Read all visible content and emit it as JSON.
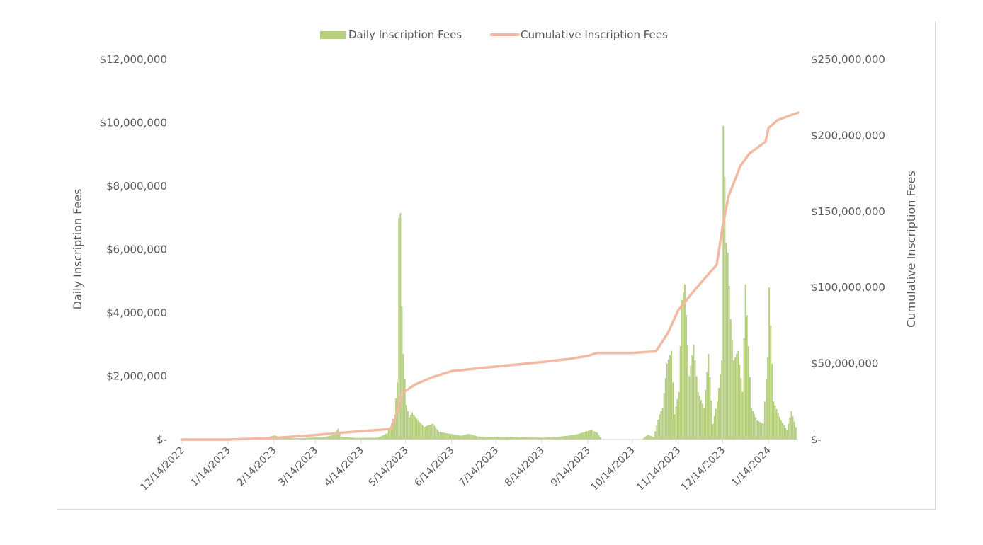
{
  "chart_data": {
    "type": "bar+line",
    "legend": {
      "placement": "top-center",
      "items": [
        {
          "label": "Daily Inscription Fees",
          "kind": "bar",
          "color": "#b5cf7e"
        },
        {
          "label": "Cumulative Inscription Fees",
          "kind": "line",
          "color": "#f4b9a3"
        }
      ]
    },
    "y_left": {
      "label": "Daily Inscription Fees",
      "range": [
        0,
        12000000
      ],
      "ticks": [
        0,
        2000000,
        4000000,
        6000000,
        8000000,
        10000000,
        12000000
      ],
      "tick_labels": [
        "$-",
        "$2,000,000",
        "$4,000,000",
        "$6,000,000",
        "$8,000,000",
        "$10,000,000",
        "$12,000,000"
      ]
    },
    "y_right": {
      "label": "Cumulative Inscription Fees",
      "range": [
        0,
        250000000
      ],
      "ticks": [
        0,
        50000000,
        100000000,
        150000000,
        200000000,
        250000000
      ],
      "tick_labels": [
        "$-",
        "$50,000,000",
        "$100,000,000",
        "$150,000,000",
        "$200,000,000",
        "$250,000,000"
      ]
    },
    "x": {
      "range": [
        "2022-12-14",
        "2024-02-03"
      ],
      "ticks": [
        "2022-12-14",
        "2023-01-14",
        "2023-02-14",
        "2023-03-14",
        "2023-04-14",
        "2023-05-14",
        "2023-06-14",
        "2023-07-14",
        "2023-08-14",
        "2023-09-14",
        "2023-10-14",
        "2023-11-14",
        "2023-12-14",
        "2024-01-14"
      ],
      "tick_labels": [
        "12/14/2022",
        "1/14/2023",
        "2/14/2023",
        "3/14/2023",
        "4/14/2023",
        "5/14/2023",
        "6/14/2023",
        "7/14/2023",
        "8/14/2023",
        "9/14/2023",
        "10/14/2023",
        "11/14/2023",
        "12/14/2023",
        "1/14/2024"
      ]
    },
    "grid": false,
    "series": [
      {
        "name": "Daily Inscription Fees",
        "type": "bar",
        "axis": "left",
        "color": "#b5cf7e",
        "points": [
          [
            "2022-12-14",
            0
          ],
          [
            "2023-01-20",
            0
          ],
          [
            "2023-02-05",
            30000
          ],
          [
            "2023-02-08",
            60000
          ],
          [
            "2023-02-14",
            130000
          ],
          [
            "2023-02-20",
            50000
          ],
          [
            "2023-03-01",
            40000
          ],
          [
            "2023-03-10",
            60000
          ],
          [
            "2023-03-20",
            80000
          ],
          [
            "2023-03-26",
            150000
          ],
          [
            "2023-03-29",
            350000
          ],
          [
            "2023-03-31",
            90000
          ],
          [
            "2023-04-10",
            50000
          ],
          [
            "2023-04-25",
            60000
          ],
          [
            "2023-05-01",
            200000
          ],
          [
            "2023-05-04",
            500000
          ],
          [
            "2023-05-06",
            800000
          ],
          [
            "2023-05-08",
            1800000
          ],
          [
            "2023-05-09",
            7000000
          ],
          [
            "2023-05-10",
            7150000
          ],
          [
            "2023-05-11",
            4200000
          ],
          [
            "2023-05-12",
            2700000
          ],
          [
            "2023-05-14",
            1100000
          ],
          [
            "2023-05-16",
            700000
          ],
          [
            "2023-05-18",
            850000
          ],
          [
            "2023-05-22",
            600000
          ],
          [
            "2023-05-26",
            400000
          ],
          [
            "2023-06-01",
            500000
          ],
          [
            "2023-06-05",
            250000
          ],
          [
            "2023-06-10",
            200000
          ],
          [
            "2023-06-14",
            170000
          ],
          [
            "2023-06-20",
            120000
          ],
          [
            "2023-06-25",
            180000
          ],
          [
            "2023-07-01",
            100000
          ],
          [
            "2023-07-10",
            80000
          ],
          [
            "2023-07-20",
            90000
          ],
          [
            "2023-08-01",
            70000
          ],
          [
            "2023-08-14",
            60000
          ],
          [
            "2023-08-25",
            90000
          ],
          [
            "2023-09-05",
            150000
          ],
          [
            "2023-09-12",
            250000
          ],
          [
            "2023-09-16",
            300000
          ],
          [
            "2023-09-20",
            220000
          ],
          [
            "2023-09-23",
            0
          ],
          [
            "2023-10-20",
            0
          ],
          [
            "2023-10-24",
            150000
          ],
          [
            "2023-10-28",
            80000
          ],
          [
            "2023-11-01",
            800000
          ],
          [
            "2023-11-03",
            1000000
          ],
          [
            "2023-11-06",
            2400000
          ],
          [
            "2023-11-09",
            2800000
          ],
          [
            "2023-11-11",
            800000
          ],
          [
            "2023-11-14",
            1500000
          ],
          [
            "2023-11-16",
            4400000
          ],
          [
            "2023-11-18",
            4900000
          ],
          [
            "2023-11-21",
            2000000
          ],
          [
            "2023-11-24",
            3000000
          ],
          [
            "2023-11-27",
            1500000
          ],
          [
            "2023-12-01",
            1000000
          ],
          [
            "2023-12-04",
            2700000
          ],
          [
            "2023-12-07",
            500000
          ],
          [
            "2023-12-10",
            1200000
          ],
          [
            "2023-12-13",
            2500000
          ],
          [
            "2023-12-14",
            9900000
          ],
          [
            "2023-12-15",
            8300000
          ],
          [
            "2023-12-16",
            6200000
          ],
          [
            "2023-12-17",
            5900000
          ],
          [
            "2023-12-19",
            3800000
          ],
          [
            "2023-12-21",
            2500000
          ],
          [
            "2023-12-24",
            2800000
          ],
          [
            "2023-12-27",
            1500000
          ],
          [
            "2023-12-29",
            4900000
          ],
          [
            "2024-01-02",
            1000000
          ],
          [
            "2024-01-06",
            600000
          ],
          [
            "2024-01-10",
            500000
          ],
          [
            "2024-01-13",
            2600000
          ],
          [
            "2024-01-14",
            4800000
          ],
          [
            "2024-01-17",
            1200000
          ],
          [
            "2024-01-22",
            600000
          ],
          [
            "2024-01-26",
            300000
          ],
          [
            "2024-01-29",
            900000
          ],
          [
            "2024-02-01",
            400000
          ]
        ]
      },
      {
        "name": "Cumulative Inscription Fees",
        "type": "line",
        "axis": "right",
        "color": "#f4b9a3",
        "points": [
          [
            "2022-12-14",
            0
          ],
          [
            "2023-01-14",
            0
          ],
          [
            "2023-02-14",
            1000000
          ],
          [
            "2023-03-14",
            3000000
          ],
          [
            "2023-04-14",
            5500000
          ],
          [
            "2023-05-04",
            7000000
          ],
          [
            "2023-05-09",
            20000000
          ],
          [
            "2023-05-11",
            30000000
          ],
          [
            "2023-05-20",
            36000000
          ],
          [
            "2023-06-01",
            41000000
          ],
          [
            "2023-06-14",
            45000000
          ],
          [
            "2023-07-14",
            48000000
          ],
          [
            "2023-08-14",
            51000000
          ],
          [
            "2023-09-01",
            53000000
          ],
          [
            "2023-09-14",
            55000000
          ],
          [
            "2023-09-20",
            57000000
          ],
          [
            "2023-10-14",
            57000000
          ],
          [
            "2023-10-30",
            58000000
          ],
          [
            "2023-11-07",
            70000000
          ],
          [
            "2023-11-14",
            85000000
          ],
          [
            "2023-11-24",
            97000000
          ],
          [
            "2023-12-01",
            105000000
          ],
          [
            "2023-12-10",
            115000000
          ],
          [
            "2023-12-14",
            140000000
          ],
          [
            "2023-12-18",
            160000000
          ],
          [
            "2023-12-26",
            180000000
          ],
          [
            "2024-01-01",
            188000000
          ],
          [
            "2024-01-12",
            196000000
          ],
          [
            "2024-01-14",
            205000000
          ],
          [
            "2024-01-20",
            210000000
          ],
          [
            "2024-01-28",
            213000000
          ],
          [
            "2024-02-03",
            215000000
          ]
        ]
      }
    ]
  }
}
